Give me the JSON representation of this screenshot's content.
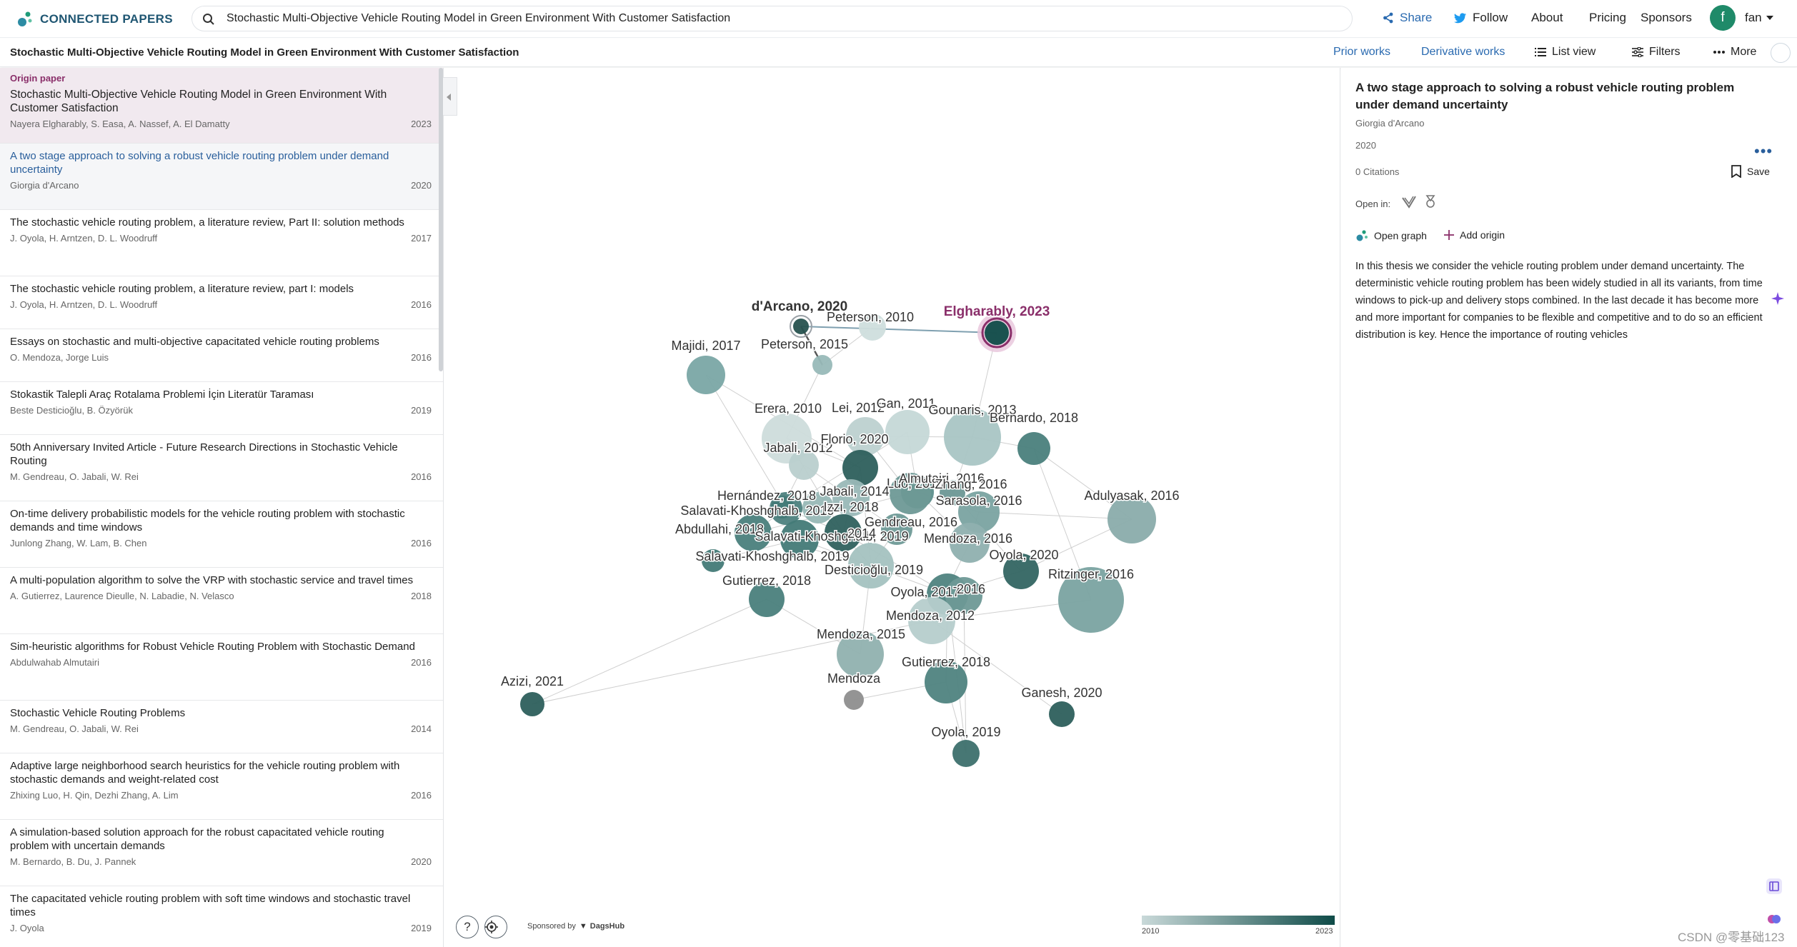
{
  "brand": {
    "name": "CONNECTED PAPERS"
  },
  "search": {
    "value": "Stochastic Multi-Objective Vehicle Routing Model in Green Environment With Customer Satisfaction"
  },
  "topnav": {
    "share": "Share",
    "follow": "Follow",
    "about": "About",
    "pricing": "Pricing",
    "sponsors": "Sponsors",
    "avatar_letter": "f",
    "user": "fan"
  },
  "subbar": {
    "title": "Stochastic Multi-Objective Vehicle Routing Model in Green Environment With Customer Satisfaction",
    "prior": "Prior works",
    "derivative": "Derivative works",
    "list_view": "List view",
    "filters": "Filters",
    "more": "More"
  },
  "list": {
    "origin_tag": "Origin paper",
    "items": [
      {
        "title": "Stochastic Multi-Objective Vehicle Routing Model in Green Environment With Customer Satisfaction",
        "authors": "Nayera Elgharably, S. Easa, A. Nassef, A. El Damatty",
        "year": "2023"
      },
      {
        "title": "A two stage approach to solving a robust vehicle routing problem under demand uncertainty",
        "authors": "Giorgia d'Arcano",
        "year": "2020"
      },
      {
        "title": "The stochastic vehicle routing problem, a literature review, Part II: solution methods",
        "authors": "J. Oyola, H. Arntzen, D. L. Woodruff",
        "year": "2017"
      },
      {
        "title": "The stochastic vehicle routing problem, a literature review, part I: models",
        "authors": "J. Oyola, H. Arntzen, D. L. Woodruff",
        "year": "2016"
      },
      {
        "title": "Essays on stochastic and multi-objective capacitated vehicle routing problems",
        "authors": "O. Mendoza, Jorge Luis",
        "year": "2016"
      },
      {
        "title": "Stokastik Talepli Araç Rotalama Problemi İçin Literatür Taraması",
        "authors": "Beste Desticioğlu, B. Özyörük",
        "year": "2019"
      },
      {
        "title": "50th Anniversary Invited Article - Future Research Directions in Stochastic Vehicle Routing",
        "authors": "M. Gendreau, O. Jabali, W. Rei",
        "year": "2016"
      },
      {
        "title": "On-time delivery probabilistic models for the vehicle routing problem with stochastic demands and time windows",
        "authors": "Junlong Zhang, W. Lam, B. Chen",
        "year": "2016"
      },
      {
        "title": "A multi-population algorithm to solve the VRP with stochastic service and travel times",
        "authors": "A. Gutierrez, Laurence Dieulle, N. Labadie, N. Velasco",
        "year": "2018"
      },
      {
        "title": "Sim-heuristic algorithms for Robust Vehicle Routing Problem with Stochastic Demand",
        "authors": "Abdulwahab Almutairi",
        "year": "2016"
      },
      {
        "title": "Stochastic Vehicle Routing Problems",
        "authors": "M. Gendreau, O. Jabali, W. Rei",
        "year": "2014"
      },
      {
        "title": "Adaptive large neighborhood search heuristics for the vehicle routing problem with stochastic demands and weight-related cost",
        "authors": "Zhixing Luo, H. Qin, Dezhi Zhang, A. Lim",
        "year": "2016"
      },
      {
        "title": "A simulation-based solution approach for the robust capacitated vehicle routing problem with uncertain demands",
        "authors": "M. Bernardo, B. Du, J. Pannek",
        "year": "2020"
      },
      {
        "title": "The capacitated vehicle routing problem with soft time windows and stochastic travel times",
        "authors": "J. Oyola",
        "year": "2019"
      }
    ]
  },
  "graph": {
    "nodes": [
      {
        "label": "d'Arcano, 2020",
        "color": "#27524f"
      },
      {
        "label": "Elgharably, 2023",
        "color": "#0f4b48"
      },
      {
        "label": "Peterson, 2010",
        "color": "#cfdedd"
      },
      {
        "label": "Peterson, 2015",
        "color": "#98b9b8"
      },
      {
        "label": "Majidi, 2017",
        "color": "#7aa7a5"
      },
      {
        "label": "Erera, 2010",
        "color": "#cddcdb"
      },
      {
        "label": "Jabali, 2012",
        "color": "#b9cfce"
      },
      {
        "label": "Lei, 2012",
        "color": "#bdd1d0"
      },
      {
        "label": "Gan, 2011",
        "color": "#c5d8d7"
      },
      {
        "label": "Gounaris, 2013",
        "color": "#a9c5c4"
      },
      {
        "label": "Bernardo, 2018",
        "color": "#4a7f7c"
      },
      {
        "label": "Florio, 2020",
        "color": "#2d5f5c"
      },
      {
        "label": "Luo, 2016",
        "color": "#5d8e8b"
      },
      {
        "label": "Almutairi, 2016",
        "color": "#6e9996"
      },
      {
        "label": "Zhang, 2016",
        "color": "#6b9795"
      },
      {
        "label": "Jabali, 2014",
        "color": "#99b8b7"
      },
      {
        "label": "Hernández, 2018",
        "color": "#4d817e"
      },
      {
        "label": "Adulyasak, 2016",
        "color": "#8aacab"
      },
      {
        "label": "Salavati-Khoshghalb, 2019",
        "color": "#437a77"
      },
      {
        "label": "Izzi, 2018",
        "color": "#98b8b6"
      },
      {
        "label": "Sarasola, 2016",
        "color": "#7aa3a1"
      },
      {
        "label": "Gendreau, 2016",
        "color": "#6f9a97"
      },
      {
        "label": "Abdullahi, 2018",
        "color": "#4a7f7c"
      },
      {
        "label": "Salavati-Khoshghalb, 2019",
        "color": "#437a77"
      },
      {
        "label": "2014",
        "color": "#2f615e"
      },
      {
        "label": "Mendoza, 2016",
        "color": "#8fb0af"
      },
      {
        "label": "Oyola, 2020",
        "color": "#336562"
      },
      {
        "label": "Salavati-Khoshghalb, 2019",
        "color": "#437a77"
      },
      {
        "label": "Ritzinger, 2016",
        "color": "#7aa3a1"
      },
      {
        "label": "Desticioğlu, 2019",
        "color": "#a4c2c0"
      },
      {
        "label": "Oyola, 2017",
        "color": "#4f8380"
      },
      {
        "label": "2016",
        "color": "#6e9996"
      },
      {
        "label": "Gutierrez, 2018",
        "color": "#4a7f7c"
      },
      {
        "label": "Mendoza, 2012",
        "color": "#b6cecc"
      },
      {
        "label": "Mendoza, 2015",
        "color": "#90b1af"
      },
      {
        "label": "Gutierrez, 2018",
        "color": "#4f8380"
      },
      {
        "label": "Mendoza",
        "color": "#8e8e8e"
      },
      {
        "label": "Azizi, 2021",
        "color": "#2d5f5c"
      },
      {
        "label": "Ganesh, 2020",
        "color": "#2d5f5c"
      },
      {
        "label": "Oyola, 2019",
        "color": "#3d706d"
      }
    ],
    "help": "?",
    "sponsored_by": "Sponsored by",
    "sponsor_name": "DagsHub",
    "legend_min": "2010",
    "legend_max": "2023"
  },
  "detail": {
    "title": "A two stage approach to solving a robust vehicle routing problem under demand uncertainty",
    "author": "Giorgia d'Arcano",
    "year": "2020",
    "citations": "0 Citations",
    "save": "Save",
    "open_in": "Open in:",
    "open_graph": "Open graph",
    "add_origin": "Add origin",
    "abstract": "In this thesis we consider the vehicle routing problem under demand uncertainty. The deterministic vehicle routing problem has been widely studied in all its variants, from time windows to pick-up and delivery stops combined. In the last decade it has become more and more important for companies to be flexible and competitive and to do so an efficient distribution is key. Hence the importance of routing vehicles"
  },
  "watermark": "CSDN @零基础123"
}
